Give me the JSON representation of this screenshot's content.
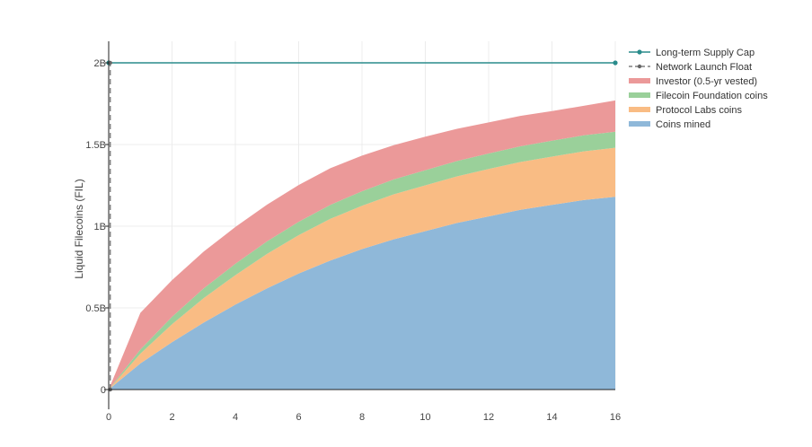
{
  "chart_data": {
    "type": "area",
    "title": "",
    "xlabel": "",
    "ylabel": "Liquid Filecoins (FIL)",
    "xlim": [
      0,
      16
    ],
    "ylim": [
      0,
      2.1
    ],
    "x_ticks": [
      0,
      2,
      4,
      6,
      8,
      10,
      12,
      14,
      16
    ],
    "x_tick_labels": [
      "0",
      "2",
      "4",
      "6",
      "8",
      "10",
      "12",
      "14",
      "16"
    ],
    "y_ticks": [
      0,
      0.5,
      1,
      1.5,
      2
    ],
    "y_tick_labels": [
      "0",
      "0.5B",
      "1B",
      "1.5B",
      "2B"
    ],
    "grid": true,
    "legend_position": "top-right",
    "x": [
      0,
      1,
      2,
      3,
      4,
      5,
      6,
      7,
      8,
      9,
      10,
      11,
      12,
      13,
      14,
      15,
      16
    ],
    "stacked_series": [
      {
        "name": "Coins mined",
        "color": "#8fb8d9",
        "values": [
          0,
          0.16,
          0.29,
          0.41,
          0.52,
          0.62,
          0.71,
          0.79,
          0.86,
          0.92,
          0.97,
          1.02,
          1.06,
          1.1,
          1.13,
          1.16,
          1.18
        ]
      },
      {
        "name": "Protocol Labs coins",
        "color": "#f9bc84",
        "values": [
          0,
          0.06,
          0.11,
          0.15,
          0.18,
          0.21,
          0.235,
          0.255,
          0.265,
          0.275,
          0.28,
          0.285,
          0.29,
          0.293,
          0.296,
          0.298,
          0.3
        ]
      },
      {
        "name": "Filecoin Foundation coins",
        "color": "#9ad09a",
        "values": [
          0,
          0.025,
          0.045,
          0.06,
          0.07,
          0.077,
          0.082,
          0.086,
          0.089,
          0.091,
          0.093,
          0.094,
          0.095,
          0.096,
          0.097,
          0.098,
          0.098
        ]
      },
      {
        "name": "Investor (0.5-yr vested)",
        "color": "#eb9999",
        "values": [
          0,
          0.225,
          0.225,
          0.225,
          0.225,
          0.225,
          0.225,
          0.224,
          0.218,
          0.21,
          0.205,
          0.197,
          0.19,
          0.186,
          0.182,
          0.181,
          0.192
        ]
      }
    ],
    "lines": [
      {
        "name": "Long-term Supply Cap",
        "color": "#2a8c8c",
        "style": "solid",
        "x": [
          0,
          16
        ],
        "y": [
          2,
          2
        ]
      },
      {
        "name": "Network Launch Float",
        "color": "#666666",
        "style": "dashed",
        "x": [
          0.05,
          0.05
        ],
        "y": [
          0,
          2
        ]
      }
    ],
    "legend": [
      {
        "label": "Long-term Supply Cap",
        "kind": "line-marker",
        "color": "#2a8c8c"
      },
      {
        "label": "Network Launch Float",
        "kind": "dash-marker",
        "color": "#666666"
      },
      {
        "label": "Investor (0.5-yr vested)",
        "kind": "area",
        "color": "#eb9999"
      },
      {
        "label": "Filecoin Foundation coins",
        "kind": "area",
        "color": "#9ad09a"
      },
      {
        "label": "Protocol Labs coins",
        "kind": "area",
        "color": "#f9bc84"
      },
      {
        "label": "Coins mined",
        "kind": "area",
        "color": "#8fb8d9"
      }
    ]
  }
}
